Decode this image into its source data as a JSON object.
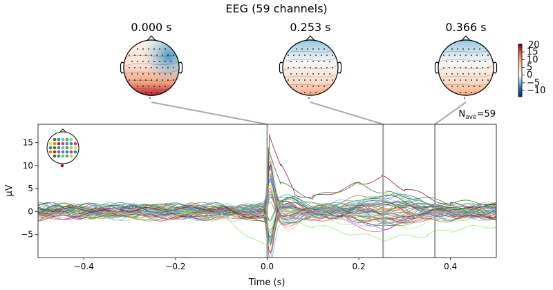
{
  "figure": {
    "title": "EEG (59 channels)",
    "nave_label": "N",
    "nave_sub": "ave",
    "nave_value": "=59"
  },
  "topomaps": [
    {
      "time": 0.0,
      "label": "0.000 s",
      "pattern": "posterior-positive"
    },
    {
      "time": 0.253,
      "label": "0.253 s",
      "pattern": "frontal-negative"
    },
    {
      "time": 0.366,
      "label": "0.366 s",
      "pattern": "frontal-negative"
    }
  ],
  "colorbar": {
    "ticks": [
      15,
      10,
      5,
      0,
      -5,
      -10
    ],
    "tick_labels": [
      "15",
      "10",
      "5",
      "0",
      "−5",
      "−10"
    ],
    "top_label": "20",
    "range": [
      -14,
      20
    ],
    "colormap": "RdBu_r"
  },
  "chart_data": {
    "type": "line",
    "xlabel": "Time (s)",
    "ylabel": "µV",
    "xlim": [
      -0.5,
      0.5
    ],
    "ylim": [
      -10,
      19
    ],
    "x_ticks": [
      -0.4,
      -0.2,
      0.0,
      0.2,
      0.4
    ],
    "x_tick_labels": [
      "−0.4",
      "−0.2",
      "0.0",
      "0.2",
      "0.4"
    ],
    "y_ticks": [
      -5,
      0,
      5,
      10,
      15
    ],
    "y_tick_labels": [
      "−5",
      "0",
      "5",
      "10",
      "15"
    ],
    "n_channels": 59,
    "marker_times": [
      0.0,
      0.253,
      0.366
    ],
    "example_series": [
      {
        "color": "#8b1a4a",
        "points": [
          [
            -0.5,
            0.5
          ],
          [
            -0.3,
            0.3
          ],
          [
            -0.1,
            0.8
          ],
          [
            0.0,
            -2
          ],
          [
            0.005,
            17
          ],
          [
            0.03,
            10
          ],
          [
            0.06,
            4
          ],
          [
            0.1,
            3
          ],
          [
            0.2,
            6
          ],
          [
            0.25,
            7.5
          ],
          [
            0.3,
            5
          ],
          [
            0.4,
            1.5
          ],
          [
            0.5,
            1
          ]
        ]
      },
      {
        "color": "#3b7d2a",
        "points": [
          [
            -0.5,
            0.8
          ],
          [
            -0.3,
            1.0
          ],
          [
            -0.1,
            0.8
          ],
          [
            0.0,
            -3
          ],
          [
            0.003,
            14
          ],
          [
            0.03,
            6
          ],
          [
            0.1,
            3
          ],
          [
            0.2,
            6
          ],
          [
            0.26,
            4
          ],
          [
            0.4,
            2
          ],
          [
            0.5,
            2
          ]
        ]
      },
      {
        "color": "#a0e680",
        "points": [
          [
            -0.5,
            -1
          ],
          [
            -0.3,
            -0.5
          ],
          [
            -0.1,
            -1
          ],
          [
            0.0,
            -8
          ],
          [
            0.02,
            -2
          ],
          [
            0.1,
            -3
          ],
          [
            0.25,
            -6
          ],
          [
            0.35,
            -5
          ],
          [
            0.4,
            -4
          ],
          [
            0.5,
            -3
          ]
        ]
      }
    ]
  }
}
